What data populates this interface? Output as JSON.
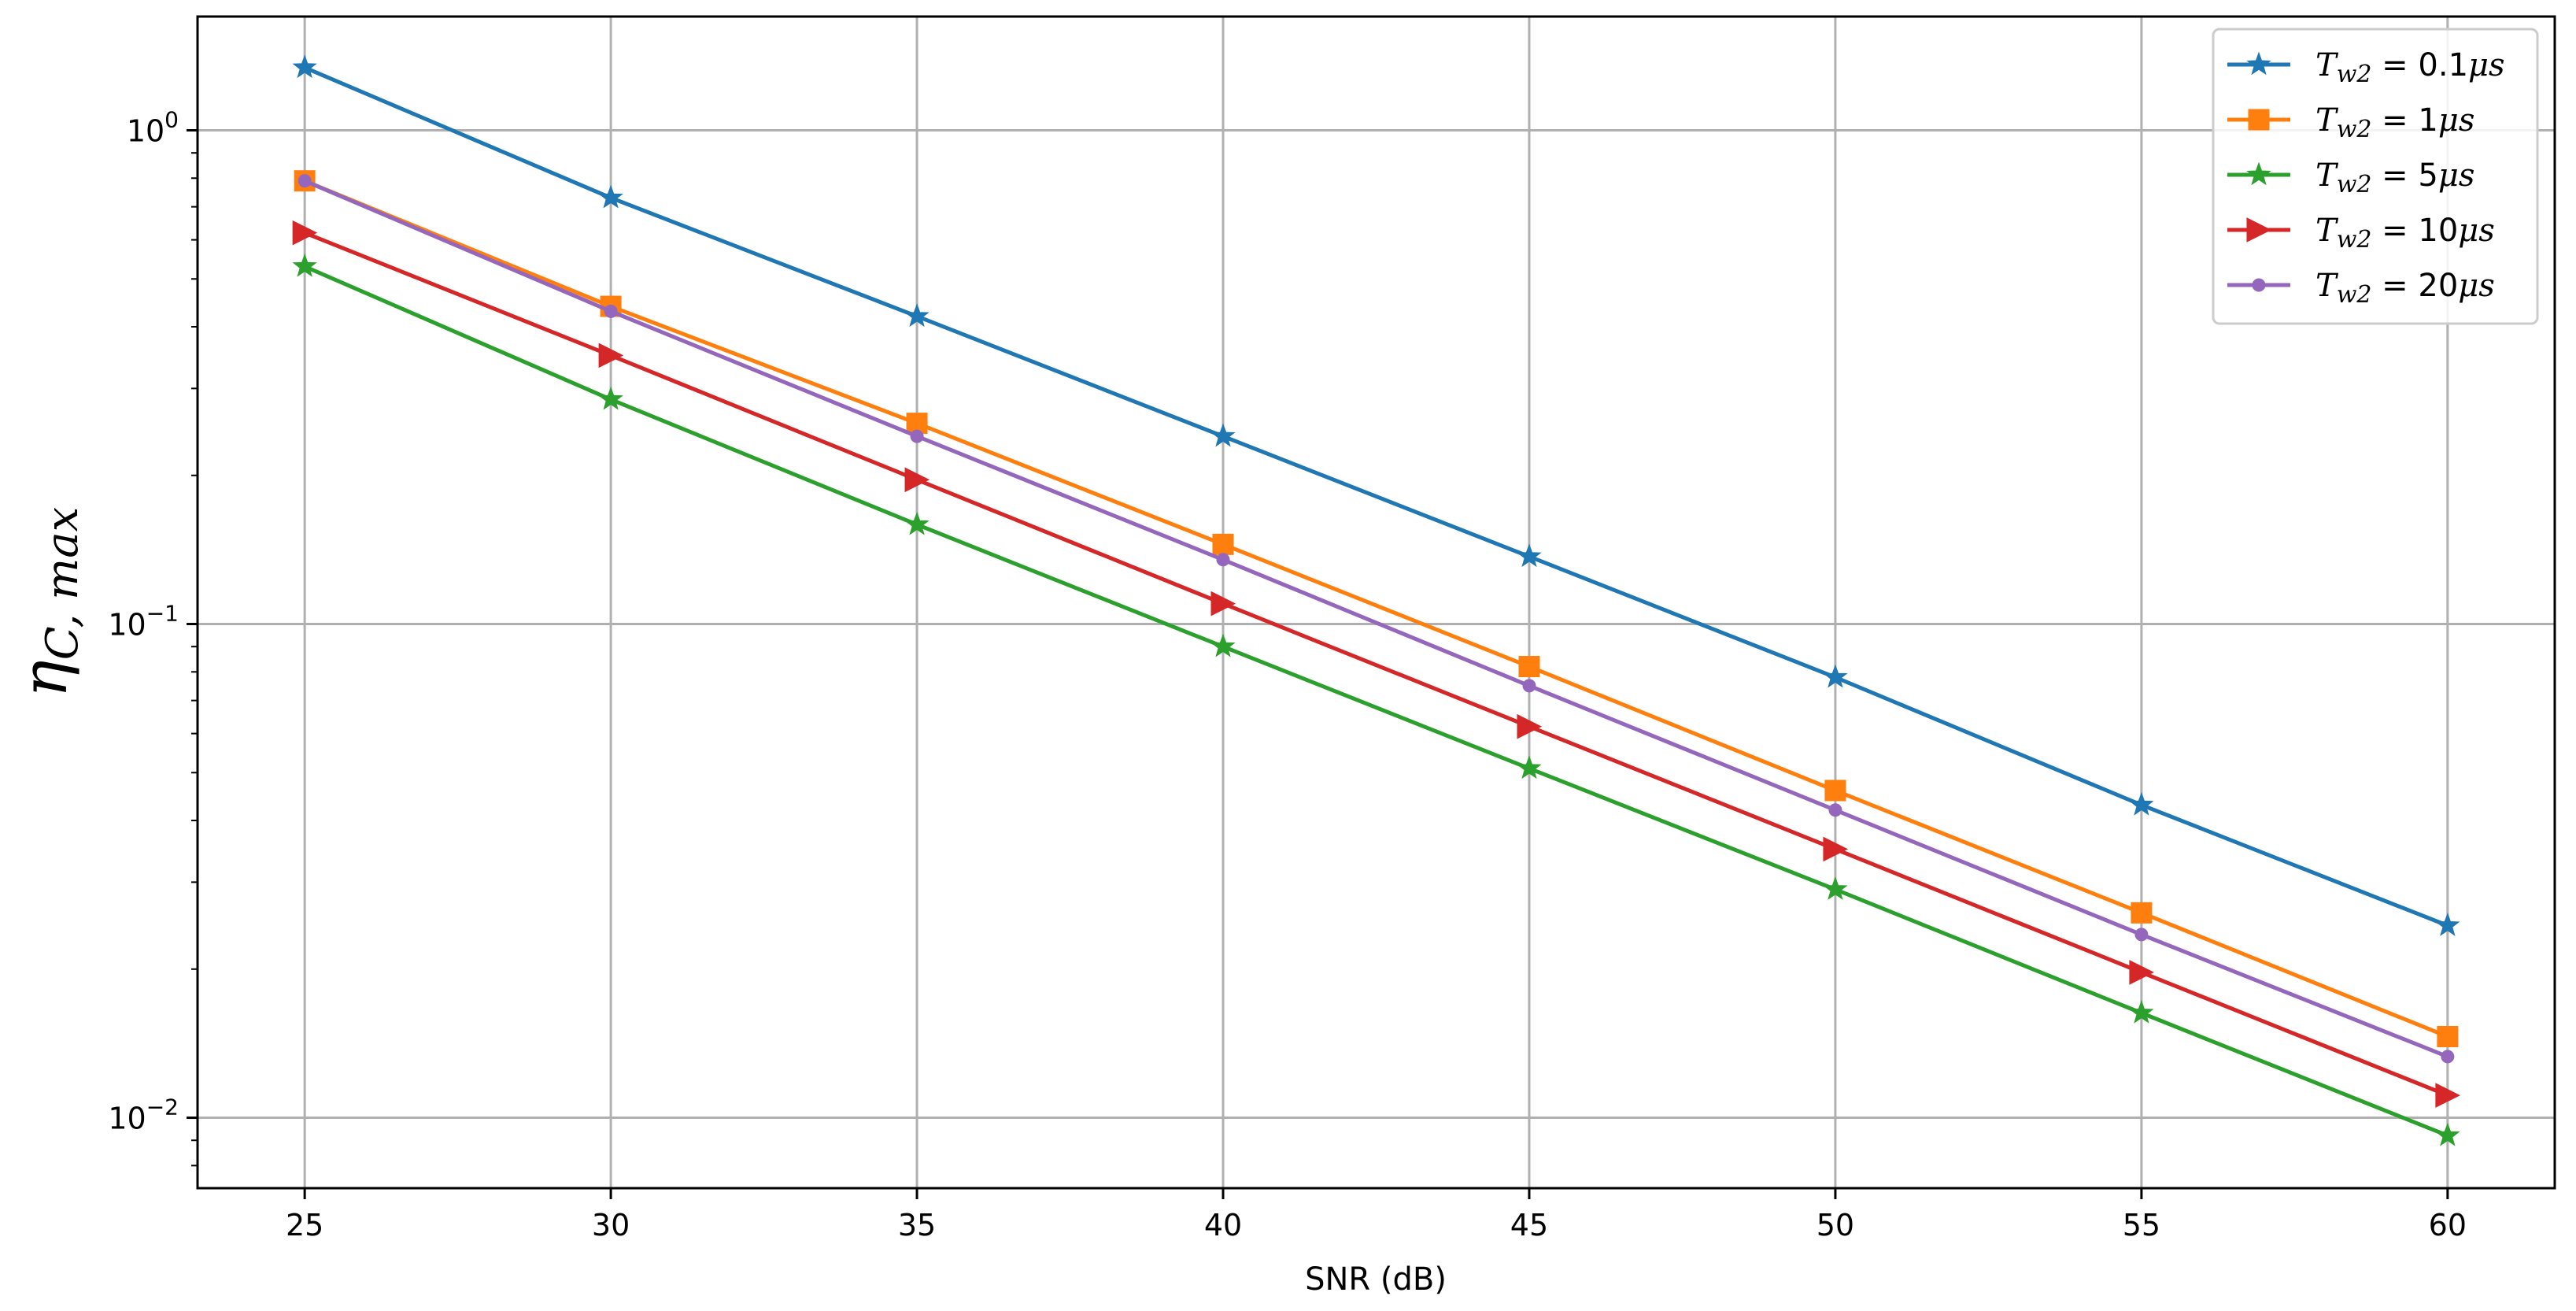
{
  "chart_data": {
    "type": "line",
    "title": "",
    "xlabel": "SNR (dB)",
    "ylabel": {
      "symbol": "η",
      "subscript": "C, max"
    },
    "yscale": "log",
    "x": [
      25,
      30,
      35,
      40,
      45,
      50,
      55,
      60
    ],
    "xlim": [
      23.25,
      61.75
    ],
    "ylim": [
      0.0072,
      1.7
    ],
    "xticks": [
      "25",
      "30",
      "35",
      "40",
      "45",
      "50",
      "55",
      "60"
    ],
    "yticks": [
      {
        "base": "10",
        "exp": "0",
        "value": 1
      },
      {
        "base": "10",
        "exp": "−1",
        "value": 0.1
      },
      {
        "base": "10",
        "exp": "−2",
        "value": 0.01
      }
    ],
    "grid": true,
    "legend_position": "top-right",
    "series": [
      {
        "name": "T_w2 = 0.1μs",
        "label": {
          "var": "T",
          "sub": "w2",
          "value": " = 0.1",
          "unit": "μs"
        },
        "color": "#1f77b4",
        "marker": "star",
        "values": [
          1.34,
          0.73,
          0.42,
          0.24,
          0.137,
          0.078,
          0.043,
          0.0245
        ]
      },
      {
        "name": "T_w2 = 1μs",
        "label": {
          "var": "T",
          "sub": "w2",
          "value": " = 1",
          "unit": "μs"
        },
        "color": "#ff7f0e",
        "marker": "square",
        "values": [
          0.79,
          0.44,
          0.255,
          0.145,
          0.082,
          0.046,
          0.026,
          0.0146
        ]
      },
      {
        "name": "T_w2 = 5μs",
        "label": {
          "var": "T",
          "sub": "w2",
          "value": " = 5",
          "unit": "μs"
        },
        "color": "#2ca02c",
        "marker": "star",
        "values": [
          0.53,
          0.285,
          0.159,
          0.09,
          0.051,
          0.029,
          0.0163,
          0.0092
        ]
      },
      {
        "name": "T_w2 = 10μs",
        "label": {
          "var": "T",
          "sub": "w2",
          "value": " = 10",
          "unit": "μs"
        },
        "color": "#d62728",
        "marker": "triangle-right",
        "values": [
          0.62,
          0.35,
          0.196,
          0.11,
          0.062,
          0.035,
          0.0197,
          0.0111
        ]
      },
      {
        "name": "T_w2 = 20μs",
        "label": {
          "var": "T",
          "sub": "w2",
          "value": " = 20",
          "unit": "μs"
        },
        "color": "#9467bd",
        "marker": "circle",
        "values": [
          0.79,
          0.43,
          0.24,
          0.135,
          0.075,
          0.042,
          0.0235,
          0.0133
        ]
      }
    ]
  }
}
